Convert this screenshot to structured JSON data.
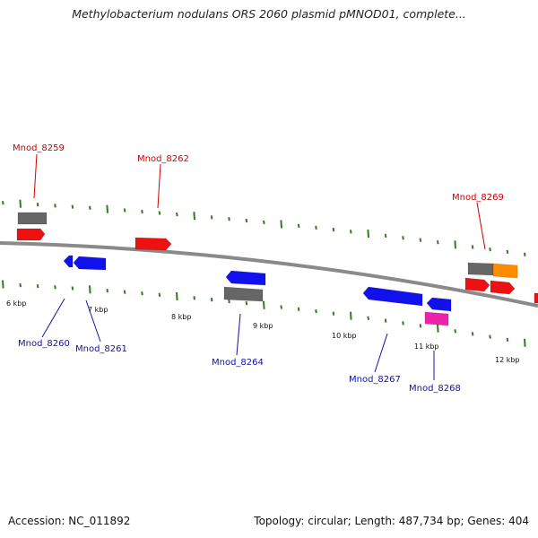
{
  "header": {
    "title": "Methylobacterium nodulans ORS 2060 plasmid pMNOD01, complete..."
  },
  "footer": {
    "accession": "Accession: NC_011892",
    "summary": "Topology: circular; Length: 487,734 bp; Genes: 404"
  },
  "colors": {
    "backbone": "#8a8a8a",
    "tick": "#2e7d1f",
    "forward_gene": "#ee1111",
    "reverse_gene": "#1111ee",
    "pseudo_gene": "#666666",
    "rna_gene": "#ff8c00",
    "other_gene": "#ee22aa",
    "forward_label": "#cc0000",
    "reverse_label": "#1111aa"
  },
  "scale": {
    "unit": "kbp",
    "labels": [
      "6 kbp",
      "7 kbp",
      "8 kbp",
      "9 kbp",
      "10 kbp",
      "11 kbp",
      "12 kbp"
    ]
  },
  "genes": {
    "forward": [
      "Mnod_8259",
      "Mnod_8262",
      "Mnod_8269"
    ],
    "reverse": [
      "Mnod_8260",
      "Mnod_8261",
      "Mnod_8264",
      "Mnod_8267",
      "Mnod_8268"
    ]
  }
}
